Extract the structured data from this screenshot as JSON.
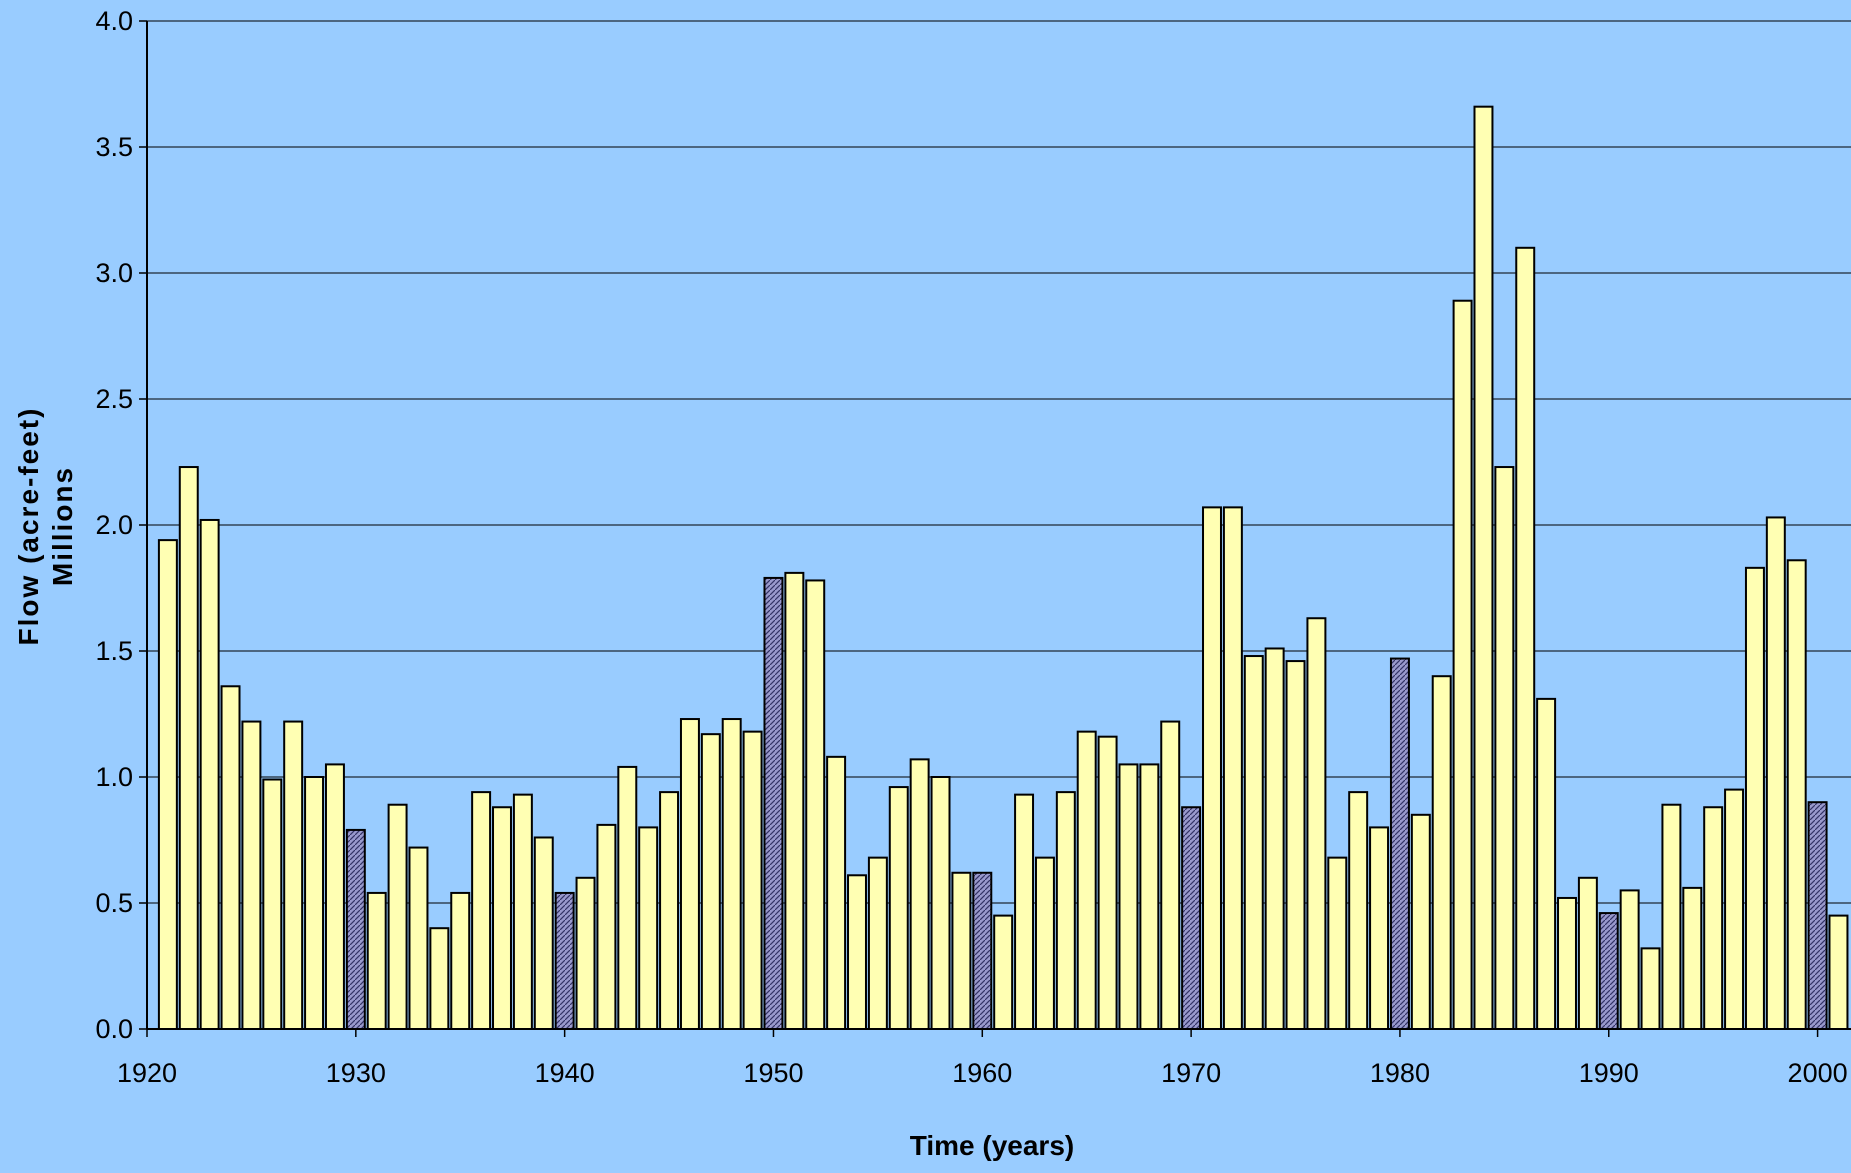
{
  "chart_data": {
    "type": "bar",
    "ylabel": "Flow (acre-feet)",
    "ylabel_unit": "Millions",
    "xlabel": "Time (years)",
    "ylim": [
      0,
      4.0
    ],
    "y_ticks": [
      "0.0",
      "0.5",
      "1.0",
      "1.5",
      "2.0",
      "2.5",
      "3.0",
      "3.5",
      "4.0"
    ],
    "x_ticks": [
      "1920",
      "1930",
      "1940",
      "1950",
      "1960",
      "1970",
      "1980",
      "1990",
      "2000"
    ],
    "grid": "horizontal",
    "colors": {
      "background": "#99CCFF",
      "bar": "#FFFFB3",
      "highlight_bar": "#9999CC",
      "gridline": "#000000"
    },
    "highlighted_years": [
      1930,
      1940,
      1950,
      1960,
      1970,
      1980,
      1990,
      2000
    ],
    "years": [
      1921,
      1922,
      1923,
      1924,
      1925,
      1926,
      1927,
      1928,
      1929,
      1930,
      1931,
      1932,
      1933,
      1934,
      1935,
      1936,
      1937,
      1938,
      1939,
      1940,
      1941,
      1942,
      1943,
      1944,
      1945,
      1946,
      1947,
      1948,
      1949,
      1950,
      1951,
      1952,
      1953,
      1954,
      1955,
      1956,
      1957,
      1958,
      1959,
      1960,
      1961,
      1962,
      1963,
      1964,
      1965,
      1966,
      1967,
      1968,
      1969,
      1970,
      1971,
      1972,
      1973,
      1974,
      1975,
      1976,
      1977,
      1978,
      1979,
      1980,
      1981,
      1982,
      1983,
      1984,
      1985,
      1986,
      1987,
      1988,
      1989,
      1990,
      1991,
      1992,
      1993,
      1994,
      1995,
      1996,
      1997,
      1998,
      1999,
      2000,
      2001
    ],
    "values": [
      1.94,
      2.23,
      2.02,
      1.36,
      1.22,
      0.99,
      1.22,
      1.0,
      1.05,
      0.79,
      0.54,
      0.89,
      0.72,
      0.4,
      0.54,
      0.94,
      0.88,
      0.93,
      0.76,
      0.54,
      0.6,
      0.81,
      1.04,
      0.8,
      0.94,
      1.23,
      1.17,
      1.23,
      1.18,
      1.79,
      1.81,
      1.78,
      1.08,
      0.61,
      0.68,
      0.96,
      1.07,
      1.0,
      0.62,
      0.62,
      0.45,
      0.93,
      0.68,
      0.94,
      1.18,
      1.16,
      1.05,
      1.05,
      1.22,
      0.88,
      2.07,
      2.07,
      1.48,
      1.51,
      1.46,
      1.63,
      0.68,
      0.94,
      0.8,
      1.47,
      0.85,
      1.4,
      2.89,
      3.66,
      2.23,
      3.1,
      1.31,
      0.52,
      0.6,
      0.46,
      0.55,
      0.32,
      0.89,
      0.56,
      0.88,
      0.95,
      1.83,
      2.03,
      1.86,
      0.9,
      0.45
    ]
  }
}
